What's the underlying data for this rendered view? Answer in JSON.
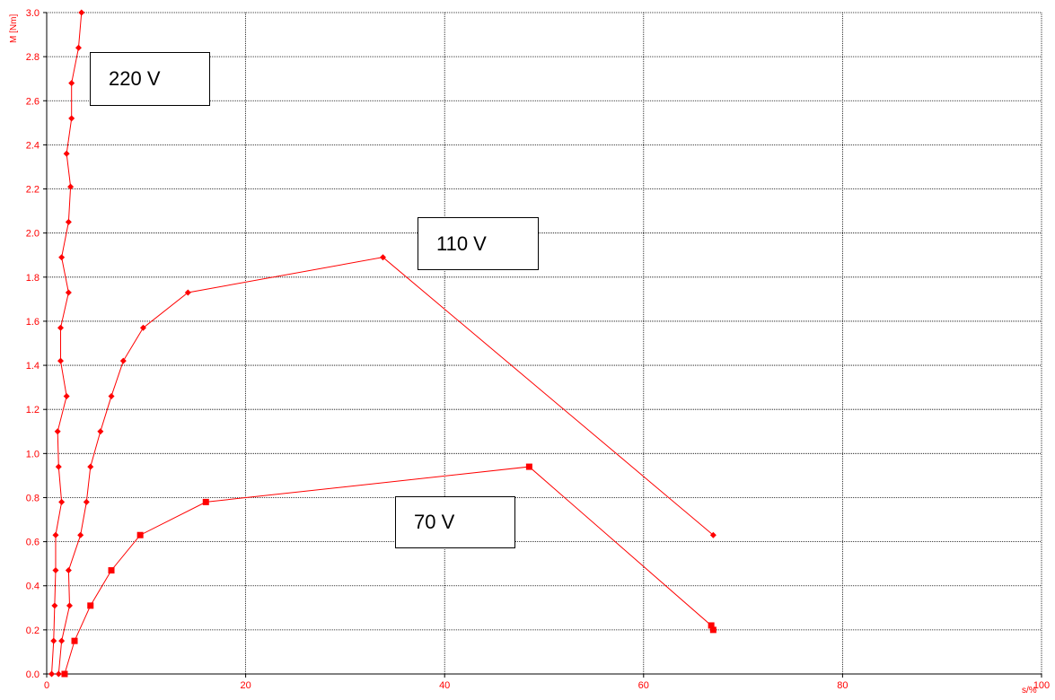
{
  "chart_data": {
    "type": "line",
    "xlabel": "s/%",
    "ylabel": "M [Nm]",
    "xlim": [
      0,
      100
    ],
    "ylim": [
      0,
      3.0
    ],
    "x_ticks": [
      0,
      20,
      40,
      60,
      80,
      100
    ],
    "y_ticks": [
      0.0,
      0.2,
      0.4,
      0.6,
      0.8,
      1.0,
      1.2,
      1.4,
      1.6,
      1.8,
      2.0,
      2.2,
      2.4,
      2.6,
      2.8,
      3.0
    ],
    "grid": true,
    "series": [
      {
        "name": "220 V",
        "marker": "diamond",
        "points": [
          [
            0.5,
            0.0
          ],
          [
            0.7,
            0.15
          ],
          [
            0.8,
            0.31
          ],
          [
            0.9,
            0.47
          ],
          [
            0.9,
            0.63
          ],
          [
            1.5,
            0.78
          ],
          [
            1.2,
            0.94
          ],
          [
            1.1,
            1.1
          ],
          [
            2.0,
            1.26
          ],
          [
            1.4,
            1.42
          ],
          [
            1.4,
            1.57
          ],
          [
            2.2,
            1.73
          ],
          [
            1.5,
            1.89
          ],
          [
            2.2,
            2.05
          ],
          [
            2.4,
            2.21
          ],
          [
            2.0,
            2.36
          ],
          [
            2.5,
            2.52
          ],
          [
            2.5,
            2.68
          ],
          [
            3.2,
            2.84
          ],
          [
            3.5,
            3.0
          ]
        ]
      },
      {
        "name": "110 V",
        "marker": "diamond",
        "points": [
          [
            1.2,
            0.0
          ],
          [
            1.5,
            0.15
          ],
          [
            2.3,
            0.31
          ],
          [
            2.2,
            0.47
          ],
          [
            3.4,
            0.63
          ],
          [
            4.0,
            0.78
          ],
          [
            4.4,
            0.94
          ],
          [
            5.4,
            1.1
          ],
          [
            6.5,
            1.26
          ],
          [
            7.7,
            1.42
          ],
          [
            9.7,
            1.57
          ],
          [
            14.2,
            1.73
          ],
          [
            33.8,
            1.89
          ],
          [
            67.0,
            0.63
          ]
        ]
      },
      {
        "name": "70 V",
        "marker": "square",
        "points": [
          [
            1.8,
            0.0
          ],
          [
            2.8,
            0.15
          ],
          [
            4.4,
            0.31
          ],
          [
            6.5,
            0.47
          ],
          [
            9.4,
            0.63
          ],
          [
            16.0,
            0.78
          ],
          [
            48.5,
            0.94
          ],
          [
            66.8,
            0.22
          ],
          [
            67.0,
            0.2
          ]
        ]
      }
    ],
    "line_color": "#ff0000",
    "annotations": [
      {
        "text": "220 V"
      },
      {
        "text": "110 V"
      },
      {
        "text": "70 V"
      }
    ]
  }
}
